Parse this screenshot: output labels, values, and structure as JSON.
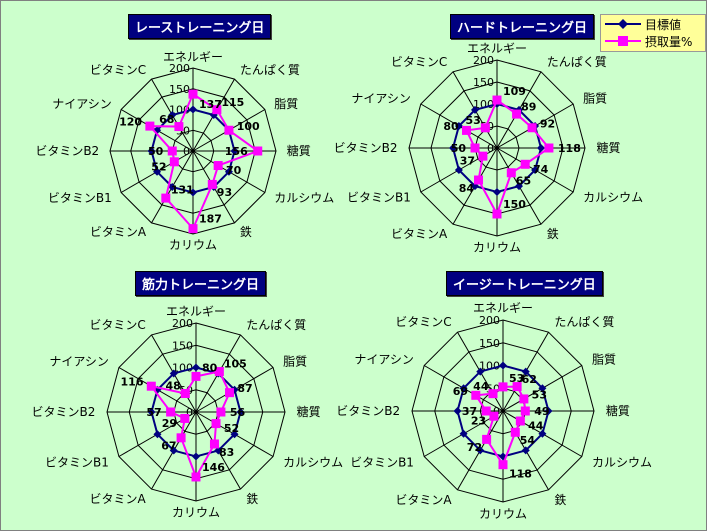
{
  "chart_data": [
    {
      "type": "radar",
      "title": "レーストレーニング日",
      "rlim": [
        0,
        200
      ],
      "ticks": [
        0,
        50,
        100,
        150,
        200
      ],
      "categories": [
        "エネルギー",
        "たんぱく質",
        "脂質",
        "糖質",
        "カルシウム",
        "鉄",
        "カリウム",
        "ビタミンA",
        "ビタミンB1",
        "ビタミンB2",
        "ナイアシン",
        "ビタミンC"
      ],
      "series": [
        {
          "name": "目標値",
          "values": [
            100,
            100,
            100,
            100,
            100,
            100,
            100,
            100,
            100,
            100,
            100,
            100
          ]
        },
        {
          "name": "摂取量%",
          "values": [
            137,
            115,
            100,
            156,
            70,
            93,
            187,
            131,
            52,
            50,
            120,
            68
          ]
        }
      ],
      "labels": [
        "137",
        "115",
        "100",
        "156",
        "70",
        "93",
        "187",
        "131",
        "52",
        "50",
        "120",
        "68"
      ]
    },
    {
      "type": "radar",
      "title": "ハードトレーニング日",
      "rlim": [
        0,
        200
      ],
      "ticks": [
        0,
        50,
        100,
        150,
        200
      ],
      "categories": [
        "エネルギー",
        "たんぱく質",
        "脂質",
        "糖質",
        "カルシウム",
        "鉄",
        "カリウム",
        "ビタミンA",
        "ビタミンB1",
        "ビタミンB2",
        "ナイアシン",
        "ビタミンC"
      ],
      "series": [
        {
          "name": "目標値",
          "values": [
            100,
            100,
            100,
            100,
            100,
            100,
            100,
            100,
            100,
            100,
            100,
            100
          ]
        },
        {
          "name": "摂取量%",
          "values": [
            109,
            89,
            92,
            118,
            74,
            65,
            150,
            84,
            37,
            50,
            80,
            53
          ]
        }
      ],
      "labels": [
        "109",
        "89",
        "92",
        "118",
        "74",
        "65",
        "150",
        "84",
        "37",
        "50",
        "80",
        "53"
      ]
    },
    {
      "type": "radar",
      "title": "筋力トレーニング日",
      "rlim": [
        0,
        200
      ],
      "ticks": [
        0,
        50,
        100,
        150,
        200
      ],
      "categories": [
        "エネルギー",
        "たんぱく質",
        "脂質",
        "糖質",
        "カルシウム",
        "鉄",
        "カリウム",
        "ビタミンA",
        "ビタミンB1",
        "ビタミンB2",
        "ナイアシン",
        "ビタミンC"
      ],
      "series": [
        {
          "name": "目標値",
          "values": [
            100,
            100,
            100,
            100,
            100,
            100,
            100,
            100,
            100,
            100,
            100,
            100
          ]
        },
        {
          "name": "摂取量%",
          "values": [
            80,
            105,
            87,
            56,
            52,
            83,
            146,
            67,
            29,
            57,
            116,
            48
          ]
        }
      ],
      "labels": [
        "80",
        "105",
        "87",
        "56",
        "52",
        "83",
        "146",
        "67",
        "29",
        "57",
        "116",
        "48"
      ]
    },
    {
      "type": "radar",
      "title": "イージートレーニング日",
      "rlim": [
        0,
        200
      ],
      "ticks": [
        0,
        50,
        100,
        150,
        200
      ],
      "categories": [
        "エネルギー",
        "たんぱく質",
        "脂質",
        "糖質",
        "カルシウム",
        "鉄",
        "カリウム",
        "ビタミンA",
        "ビタミンB1",
        "ビタミンB2",
        "ナイアシン",
        "ビタミンC"
      ],
      "series": [
        {
          "name": "目標値",
          "values": [
            100,
            100,
            100,
            100,
            100,
            100,
            100,
            100,
            100,
            100,
            100,
            100
          ]
        },
        {
          "name": "摂取量%",
          "values": [
            53,
            62,
            53,
            49,
            44,
            54,
            118,
            72,
            23,
            37,
            69,
            44
          ]
        }
      ],
      "labels": [
        "53",
        "62",
        "53",
        "49",
        "44",
        "54",
        "118",
        "72",
        "23",
        "37",
        "69",
        "44"
      ]
    }
  ],
  "legend": {
    "items": [
      "目標値",
      "摂取量%"
    ],
    "placement": "top-right of second chart"
  },
  "colors": {
    "target": "#000080",
    "intake": "#ff00ff",
    "background": "#ccffcc",
    "title_bg": "#000080",
    "legend_bg": "#ffff99"
  }
}
